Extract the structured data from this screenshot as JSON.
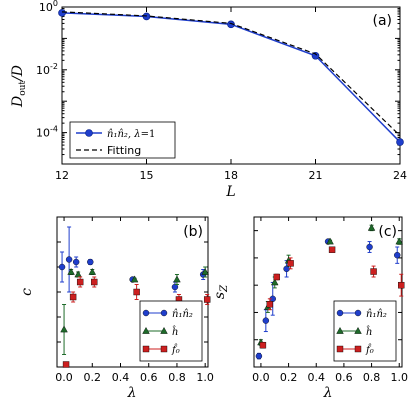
{
  "chart_data": [
    {
      "type": "line",
      "panel_label": "(a)",
      "xlabel": "L",
      "ylabel": "D_out/D",
      "x": [
        12,
        15,
        18,
        21,
        24
      ],
      "xlim": [
        12,
        24
      ],
      "ylim_log10": [
        -5,
        0
      ],
      "yscale": "log",
      "xticks": [
        "12",
        "15",
        "18",
        "21",
        "24"
      ],
      "yticks": [
        {
          "base": "10",
          "exp": "0"
        },
        {
          "base": "10",
          "exp": "-2"
        },
        {
          "base": "10",
          "exp": "-4"
        }
      ],
      "series": [
        {
          "name": "n̂₁n̂₂, λ=1",
          "name_main": "n̂₁n̂₂, ",
          "name_italic": "λ",
          "name_tail": "=1",
          "y": [
            0.65,
            0.5,
            0.28,
            0.028,
            5e-05
          ],
          "color": "#1f3ecc",
          "style": "solid",
          "marker": "circle"
        },
        {
          "name": "Fitting",
          "y": [
            0.7,
            0.52,
            0.3,
            0.032,
            8e-05
          ],
          "color": "#000000",
          "style": "dashed"
        }
      ],
      "legend_position": "lower-left"
    },
    {
      "type": "scatter",
      "panel_label": "(b)",
      "xlabel": "λ",
      "ylabel": "c",
      "xlim": [
        -0.05,
        1.02
      ],
      "ylim": [
        0,
        0.6
      ],
      "xticks": [
        "0.0",
        "0.2",
        "0.4",
        "0.6",
        "0.8",
        "1.0"
      ],
      "yticks": [
        "0",
        "0.1",
        "0.2",
        "0.3",
        "0.4",
        "0.5",
        "0.6"
      ],
      "series": [
        {
          "name": "n̂₁n̂₂",
          "marker": "circle",
          "color": "#1f3ecc",
          "x": [
            0.0,
            0.05,
            0.1,
            0.2,
            0.5,
            0.8,
            1.0
          ],
          "y": [
            0.4,
            0.43,
            0.42,
            0.42,
            0.35,
            0.32,
            0.37
          ],
          "err": [
            0.06,
            0.13,
            0.02,
            0.01,
            0.005,
            0.02,
            0.02
          ]
        },
        {
          "name": "ĥ",
          "marker": "triangle",
          "color": "#1e6b2a",
          "x": [
            0.0,
            0.05,
            0.1,
            0.2,
            0.5,
            0.8,
            1.0
          ],
          "y": [
            0.15,
            0.38,
            0.37,
            0.38,
            0.35,
            0.35,
            0.38
          ],
          "err": [
            0.1,
            0.01,
            0.01,
            0.01,
            0.005,
            0.02,
            0.02
          ]
        },
        {
          "name": "f̂₀",
          "marker": "square",
          "color": "#cc1f1f",
          "x": [
            0.0,
            0.05,
            0.1,
            0.2,
            0.5,
            0.8,
            1.0
          ],
          "y": [
            0.01,
            0.28,
            0.34,
            0.34,
            0.3,
            0.27,
            0.27
          ],
          "err": [
            0.01,
            0.02,
            0.02,
            0.02,
            0.03,
            0.02,
            0.02
          ]
        }
      ],
      "legend_position": "lower-right"
    },
    {
      "type": "scatter",
      "panel_label": "(c)",
      "xlabel": "λ",
      "ylabel": "s_Z",
      "xlim": [
        -0.05,
        1.02
      ],
      "ylim": [
        0,
        0.55
      ],
      "xticks": [
        "0.0",
        "0.2",
        "0.4",
        "0.6",
        "0.8",
        "1.0"
      ],
      "yticks": [
        "0",
        "0.1",
        "0.2",
        "0.3",
        "0.4",
        "0.5"
      ],
      "series": [
        {
          "name": "n̂₁n̂₂",
          "marker": "circle",
          "color": "#1f3ecc",
          "x": [
            0.0,
            0.05,
            0.1,
            0.2,
            0.5,
            0.8,
            1.0
          ],
          "y": [
            0.04,
            0.17,
            0.25,
            0.36,
            0.46,
            0.44,
            0.41
          ],
          "err": [
            0.01,
            0.04,
            0.06,
            0.03,
            0.005,
            0.02,
            0.03
          ]
        },
        {
          "name": "ĥ",
          "marker": "triangle",
          "color": "#1e6b2a",
          "x": [
            0.0,
            0.05,
            0.1,
            0.2,
            0.5,
            0.8,
            1.0
          ],
          "y": [
            0.09,
            0.22,
            0.31,
            0.39,
            0.46,
            0.51,
            0.46
          ],
          "err": [
            0.01,
            0.02,
            0.02,
            0.02,
            0.005,
            0.01,
            0.01
          ]
        },
        {
          "name": "f̂₀",
          "marker": "square",
          "color": "#cc1f1f",
          "x": [
            0.0,
            0.05,
            0.1,
            0.2,
            0.5,
            0.8,
            1.0
          ],
          "y": [
            0.08,
            0.23,
            0.33,
            0.38,
            0.43,
            0.35,
            0.3
          ],
          "err": [
            0.01,
            0.02,
            0.01,
            0.02,
            0.005,
            0.02,
            0.04
          ]
        }
      ],
      "legend_position": "lower-right"
    }
  ]
}
